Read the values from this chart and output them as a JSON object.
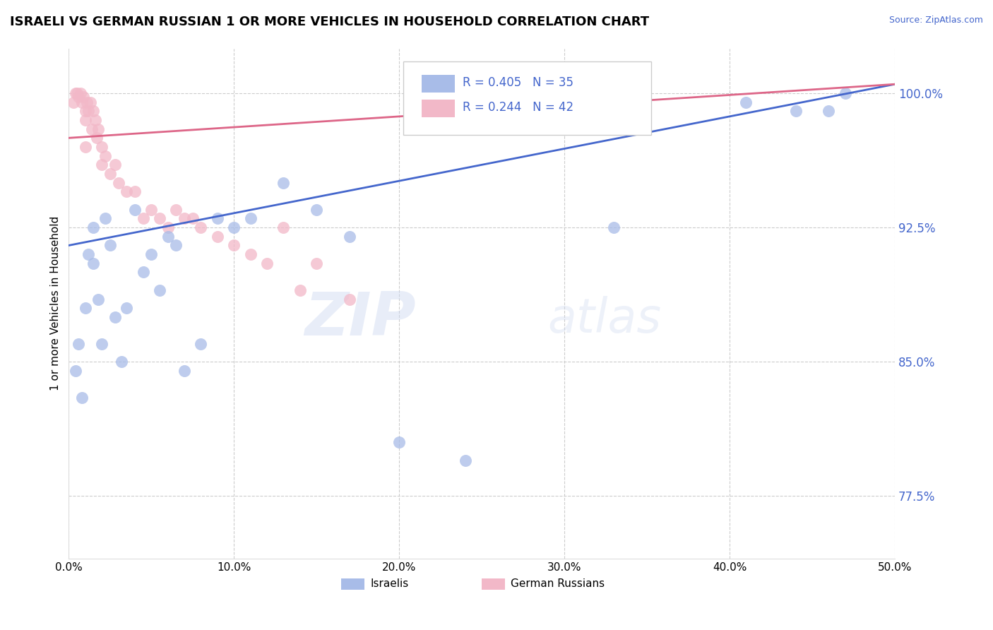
{
  "title": "ISRAELI VS GERMAN RUSSIAN 1 OR MORE VEHICLES IN HOUSEHOLD CORRELATION CHART",
  "ylabel": "1 or more Vehicles in Household",
  "source": "Source: ZipAtlas.com",
  "watermark_zip": "ZIP",
  "watermark_atlas": "atlas",
  "xlim": [
    0.0,
    50.0
  ],
  "ylim": [
    74.0,
    102.5
  ],
  "yticks": [
    77.5,
    85.0,
    92.5,
    100.0
  ],
  "xticks": [
    0.0,
    10.0,
    20.0,
    30.0,
    40.0,
    50.0
  ],
  "legend_r_israeli": "R = 0.405",
  "legend_n_israeli": "N = 35",
  "legend_r_german": "R = 0.244",
  "legend_n_german": "N = 42",
  "israeli_color": "#a8bce8",
  "german_color": "#f2b8c8",
  "israeli_line_color": "#4466cc",
  "german_line_color": "#dd6688",
  "israeli_x": [
    0.4,
    0.6,
    0.8,
    1.0,
    1.2,
    1.5,
    1.8,
    2.0,
    2.2,
    2.5,
    2.8,
    3.2,
    3.5,
    4.0,
    4.5,
    5.0,
    5.5,
    6.0,
    6.5,
    7.0,
    8.0,
    9.0,
    10.0,
    11.0,
    13.0,
    15.0,
    17.0,
    20.0,
    24.0,
    33.0,
    41.0,
    44.0,
    46.0,
    47.0,
    1.5
  ],
  "israeli_y": [
    84.5,
    86.0,
    83.0,
    88.0,
    91.0,
    90.5,
    88.5,
    86.0,
    93.0,
    91.5,
    87.5,
    85.0,
    88.0,
    93.5,
    90.0,
    91.0,
    89.0,
    92.0,
    91.5,
    84.5,
    86.0,
    93.0,
    92.5,
    93.0,
    95.0,
    93.5,
    92.0,
    80.5,
    79.5,
    92.5,
    99.5,
    99.0,
    99.0,
    100.0,
    92.5
  ],
  "german_x": [
    0.3,
    0.4,
    0.5,
    0.6,
    0.7,
    0.8,
    0.9,
    1.0,
    1.0,
    1.1,
    1.2,
    1.3,
    1.4,
    1.5,
    1.6,
    1.7,
    1.8,
    2.0,
    2.2,
    2.5,
    2.8,
    3.0,
    3.5,
    4.0,
    4.5,
    5.0,
    5.5,
    6.0,
    6.5,
    7.0,
    7.5,
    8.0,
    9.0,
    10.0,
    11.0,
    12.0,
    13.0,
    14.0,
    15.0,
    17.0,
    1.0,
    2.0
  ],
  "german_y": [
    99.5,
    100.0,
    100.0,
    99.8,
    100.0,
    99.5,
    99.8,
    99.0,
    98.5,
    99.5,
    99.0,
    99.5,
    98.0,
    99.0,
    98.5,
    97.5,
    98.0,
    97.0,
    96.5,
    95.5,
    96.0,
    95.0,
    94.5,
    94.5,
    93.0,
    93.5,
    93.0,
    92.5,
    93.5,
    93.0,
    93.0,
    92.5,
    92.0,
    91.5,
    91.0,
    90.5,
    92.5,
    89.0,
    90.5,
    88.5,
    97.0,
    96.0
  ],
  "israeli_trend_x": [
    0.0,
    50.0
  ],
  "israeli_trend_y": [
    91.5,
    100.5
  ],
  "german_trend_x": [
    0.0,
    50.0
  ],
  "german_trend_y": [
    97.5,
    100.5
  ]
}
